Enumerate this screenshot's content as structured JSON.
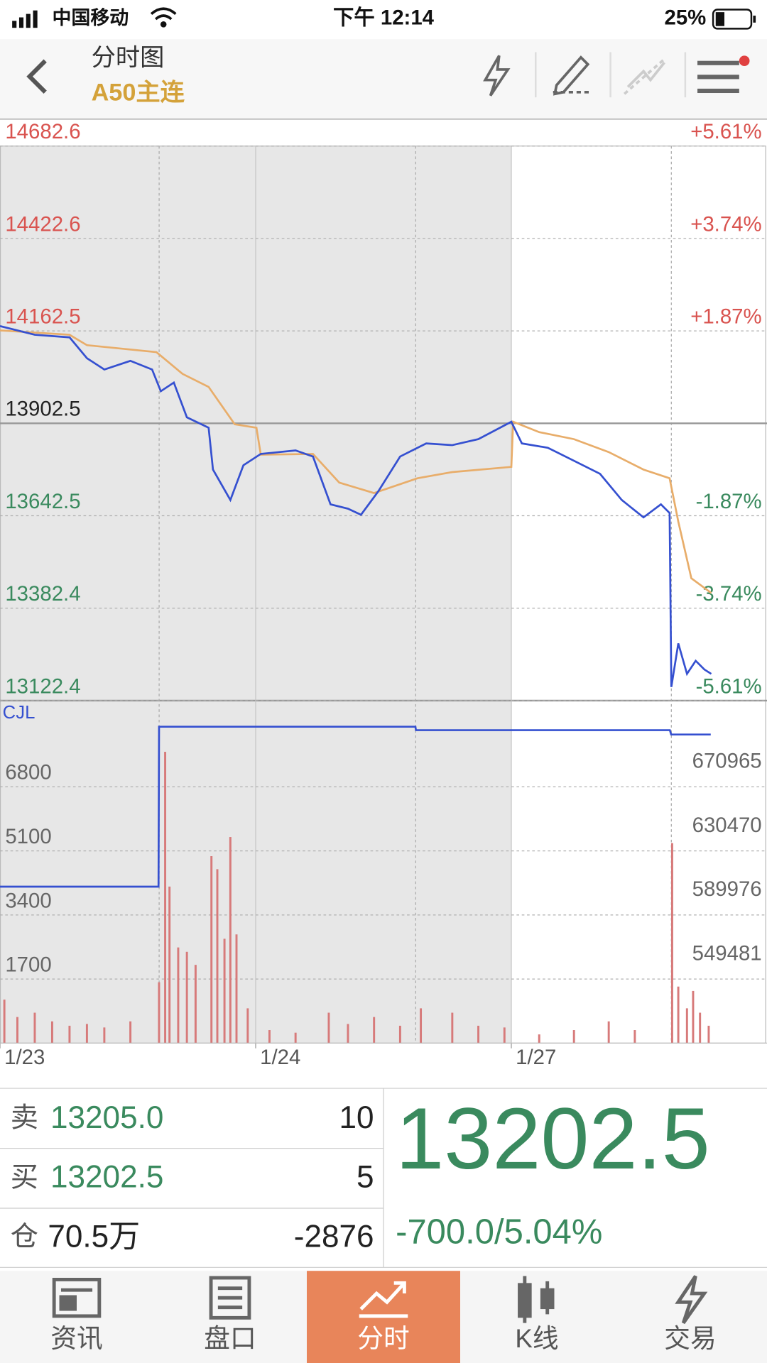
{
  "status_bar": {
    "carrier": "中国移动",
    "time": "下午 12:14",
    "battery": "25%"
  },
  "header": {
    "title": "分时图",
    "subtitle": "A50主连"
  },
  "chart_data": [
    {
      "type": "line",
      "xlim": [
        0,
        3
      ],
      "ylim": [
        13122.4,
        14682.6
      ],
      "yticks": [
        14682.6,
        14422.6,
        14162.5,
        13902.5,
        13642.5,
        13382.4,
        13122.4
      ],
      "y2lim": [
        -5.61,
        5.61
      ],
      "y2ticks": [
        {
          "value": 5.61,
          "label": "+5.61%"
        },
        {
          "value": 3.74,
          "label": "+3.74%"
        },
        {
          "value": 1.87,
          "label": "+1.87%"
        },
        {
          "value": -1.87,
          "label": "-1.87%"
        },
        {
          "value": -3.74,
          "label": "-3.74%"
        },
        {
          "value": -5.61,
          "label": "-5.61%"
        }
      ],
      "grid": true,
      "series": [
        {
          "color": "#3550d0",
          "x": [
            0,
            0.136,
            0.272,
            0.34,
            0.408,
            0.51,
            0.595,
            0.629,
            0.68,
            0.731,
            0.816,
            0.833,
            0.901,
            0.952,
            1.02,
            1.156,
            1.224,
            1.293,
            1.361,
            1.412,
            1.48,
            1.565,
            1.667,
            1.769,
            1.871,
            2.0,
            2.041,
            2.143,
            2.245,
            2.347,
            2.432,
            2.517,
            2.585,
            2.619,
            2.626,
            2.653,
            2.687,
            2.721,
            2.755,
            2.782
          ],
          "values": [
            14176.2,
            14151.7,
            14144.4,
            14085.7,
            14053.9,
            14078.3,
            14053.9,
            13992.7,
            14017.2,
            13919.3,
            13890,
            13772.5,
            13686.9,
            13784.7,
            13816.5,
            13826.3,
            13809.2,
            13674.7,
            13662.4,
            13645.3,
            13711.5,
            13809.2,
            13845.9,
            13841,
            13858.1,
            13907,
            13845.9,
            13833.7,
            13797,
            13760.3,
            13686.9,
            13638,
            13674.7,
            13650.2,
            13160.9,
            13283.2,
            13197.6,
            13234.3,
            13209.9,
            13197.6
          ]
        },
        {
          "color": "#e8ad6a",
          "x": [
            0,
            0.272,
            0.34,
            0.612,
            0.714,
            0.816,
            0.918,
            1.003,
            1.02,
            1.224,
            1.327,
            1.463,
            1.633,
            1.769,
            2.0,
            2.007,
            2.109,
            2.245,
            2.381,
            2.517,
            2.619,
            2.653,
            2.704,
            2.782
          ],
          "values": [
            14164,
            14151.7,
            14122.4,
            14102.8,
            14041.6,
            14004.9,
            13899.7,
            13890,
            13814.1,
            13816.5,
            13735.8,
            13706.4,
            13748,
            13765.2,
            13779.9,
            13907,
            13877.7,
            13858.1,
            13821.5,
            13772.5,
            13748,
            13625.8,
            13466.7,
            13425.2
          ]
        }
      ]
    },
    {
      "type": "bar",
      "xlim": [
        0,
        3
      ],
      "xticks": [
        {
          "value": 0,
          "label": "1/23"
        },
        {
          "value": 1,
          "label": "1/24"
        },
        {
          "value": 2,
          "label": "1/27"
        }
      ],
      "ylim": [
        0,
        9040
      ],
      "yticks": [
        1700,
        3400,
        5100,
        6800
      ],
      "y2lim": [
        501680,
        717115
      ],
      "y2ticks": [
        549481,
        589976,
        630470,
        670965
      ],
      "grid": true,
      "color": "#d77a7a",
      "x": [
        0.017,
        0.068,
        0.136,
        0.204,
        0.272,
        0.34,
        0.408,
        0.51,
        0.622,
        0.646,
        0.663,
        0.697,
        0.731,
        0.765,
        0.827,
        0.85,
        0.878,
        0.901,
        0.925,
        0.969,
        1.054,
        1.156,
        1.286,
        1.361,
        1.463,
        1.565,
        1.646,
        1.769,
        1.871,
        1.973,
        2.109,
        2.245,
        2.381,
        2.483,
        2.629,
        2.653,
        2.687,
        2.711,
        2.738,
        2.772
      ],
      "values": [
        1154,
        692,
        807,
        577,
        461,
        508,
        415,
        577,
        1615,
        7728,
        4153,
        2538,
        2422,
        2076,
        4960,
        4614,
        2768,
        5468,
        2884,
        923,
        346,
        277,
        807,
        508,
        692,
        461,
        923,
        807,
        461,
        415,
        231,
        346,
        577,
        346,
        5306,
        1500,
        923,
        1384,
        807,
        461
      ],
      "series": [
        {
          "name": "CJL",
          "color": "#3550d0",
          "axis": "y2",
          "x": [
            0,
            0.62,
            0.622,
            1.625,
            1.627,
            2.62,
            2.625,
            2.78
          ],
          "values": [
            600580,
            600580,
            701735,
            701735,
            699540,
            699540,
            696790,
            696790
          ]
        }
      ]
    }
  ],
  "quote": {
    "rows": [
      [
        "卖",
        "13205.0",
        "10"
      ],
      [
        "买",
        "13202.5",
        "5"
      ],
      [
        "仓",
        "70.5万",
        "-2876"
      ]
    ],
    "last": "13202.5",
    "change": "-700.0/5.04%"
  },
  "tabs": {
    "items": [
      "资讯",
      "盘口",
      "分时",
      "K线",
      "交易"
    ],
    "active": 2
  }
}
